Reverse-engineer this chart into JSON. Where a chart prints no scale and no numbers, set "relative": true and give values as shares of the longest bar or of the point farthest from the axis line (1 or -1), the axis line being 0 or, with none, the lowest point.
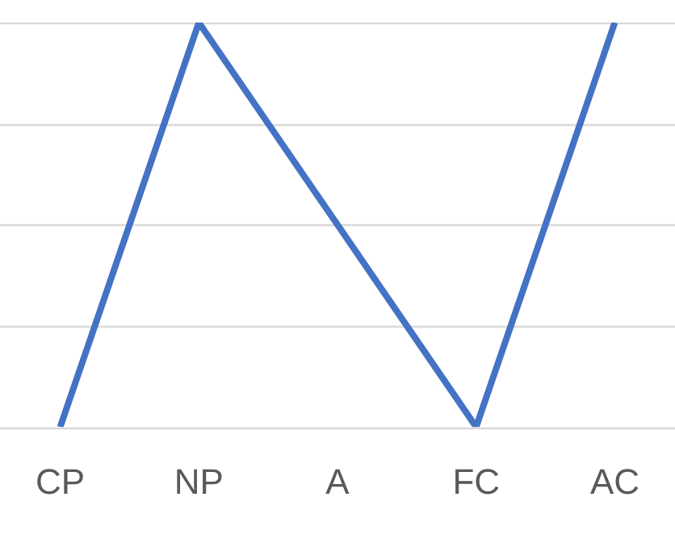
{
  "chart_data": {
    "type": "line",
    "relative": true,
    "categories": [
      "CP",
      "NP",
      "A",
      "FC",
      "AC"
    ],
    "series": [
      {
        "color": "#4472c4",
        "values": [
          0,
          1,
          0.5,
          0,
          1
        ]
      }
    ],
    "grid": "y",
    "legend": false,
    "marker": "none",
    "line_style": "solid"
  }
}
